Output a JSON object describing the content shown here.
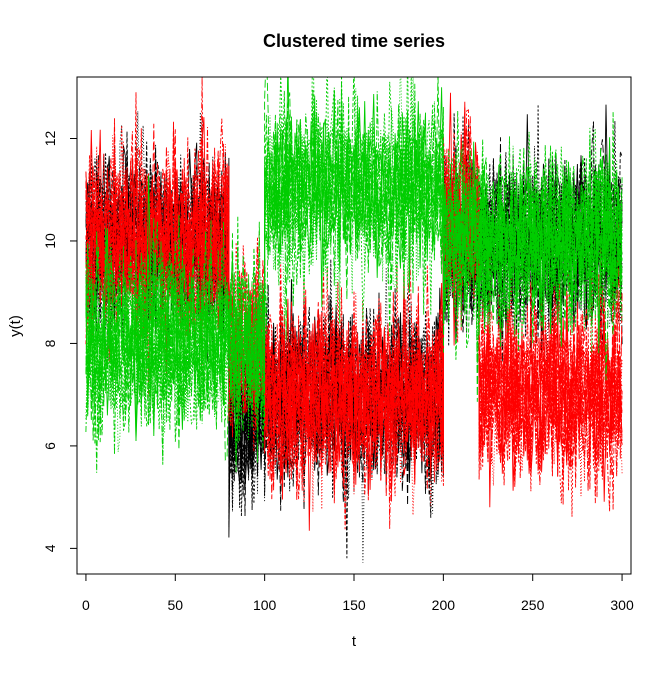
{
  "chart_data": {
    "type": "line",
    "title": "Clustered time series",
    "xlabel": "t",
    "ylabel": "y(t)",
    "xlim": [
      -5,
      305
    ],
    "ylim": [
      3.5,
      13.2
    ],
    "x_ticks": [
      0,
      50,
      100,
      150,
      200,
      250,
      300
    ],
    "y_ticks": [
      4,
      6,
      8,
      10,
      12
    ],
    "x_step": 1,
    "grid": false,
    "legend": "none",
    "colors": {
      "cluster_1": "#000000",
      "cluster_2": "#ff0000",
      "cluster_3": "#00cd00"
    },
    "series": [
      {
        "cluster": "cluster_1",
        "segments": [
          {
            "t": [
              0,
              80
            ],
            "mean": 10.0,
            "sd": 0.8
          },
          {
            "t": [
              80,
              100
            ],
            "mean": 6.5,
            "sd": 0.8
          },
          {
            "t": [
              100,
              200
            ],
            "mean": 7.0,
            "sd": 0.8
          },
          {
            "t": [
              200,
              300
            ],
            "mean": 10.0,
            "sd": 0.8
          }
        ]
      },
      {
        "cluster": "cluster_2",
        "segments": [
          {
            "t": [
              0,
              80
            ],
            "mean": 10.0,
            "sd": 0.85
          },
          {
            "t": [
              80,
              100
            ],
            "mean": 8.0,
            "sd": 0.85
          },
          {
            "t": [
              100,
              200
            ],
            "mean": 7.0,
            "sd": 0.85
          },
          {
            "t": [
              200,
              220
            ],
            "mean": 10.5,
            "sd": 0.85
          },
          {
            "t": [
              220,
              300
            ],
            "mean": 7.0,
            "sd": 0.85
          }
        ]
      },
      {
        "cluster": "cluster_3",
        "segments": [
          {
            "t": [
              0,
              100
            ],
            "mean": 8.0,
            "sd": 0.85
          },
          {
            "t": [
              100,
              200
            ],
            "mean": 11.0,
            "sd": 0.85
          },
          {
            "t": [
              200,
              300
            ],
            "mean": 10.0,
            "sd": 0.85
          }
        ]
      }
    ]
  }
}
